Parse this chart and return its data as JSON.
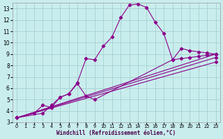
{
  "xlabel": "Windchill (Refroidissement éolien,°C)",
  "xlim": [
    -0.5,
    23.5
  ],
  "ylim": [
    3,
    13.5
  ],
  "xticks": [
    0,
    1,
    2,
    3,
    4,
    5,
    6,
    7,
    8,
    9,
    10,
    11,
    12,
    13,
    14,
    15,
    16,
    17,
    18,
    19,
    20,
    21,
    22,
    23
  ],
  "yticks": [
    3,
    4,
    5,
    6,
    7,
    8,
    9,
    10,
    11,
    12,
    13
  ],
  "bg_color": "#c9eded",
  "line_color": "#8b008b",
  "grid_color": "#aad4d4",
  "lines": [
    {
      "x": [
        0,
        2,
        3,
        4,
        5,
        6,
        7,
        8,
        9,
        10,
        11,
        12,
        13,
        14,
        15,
        16,
        17,
        18,
        19,
        20,
        21,
        22,
        23
      ],
      "y": [
        3.4,
        3.8,
        4.5,
        4.3,
        5.2,
        5.5,
        6.5,
        8.6,
        8.5,
        9.7,
        10.5,
        12.2,
        13.3,
        13.4,
        13.1,
        11.8,
        10.8,
        8.5,
        9.5,
        9.3,
        9.2,
        9.1,
        9.0
      ]
    },
    {
      "x": [
        0,
        23
      ],
      "y": [
        3.4,
        9.0
      ]
    },
    {
      "x": [
        0,
        23
      ],
      "y": [
        3.4,
        8.7
      ]
    },
    {
      "x": [
        0,
        23
      ],
      "y": [
        3.4,
        8.3
      ]
    },
    {
      "x": [
        0,
        3,
        4,
        5,
        6,
        7,
        8,
        9,
        18,
        19,
        20,
        21,
        22,
        23
      ],
      "y": [
        3.4,
        3.8,
        4.5,
        5.2,
        5.5,
        6.4,
        5.3,
        5.0,
        8.5,
        8.6,
        8.7,
        8.8,
        8.9,
        9.0
      ]
    }
  ]
}
